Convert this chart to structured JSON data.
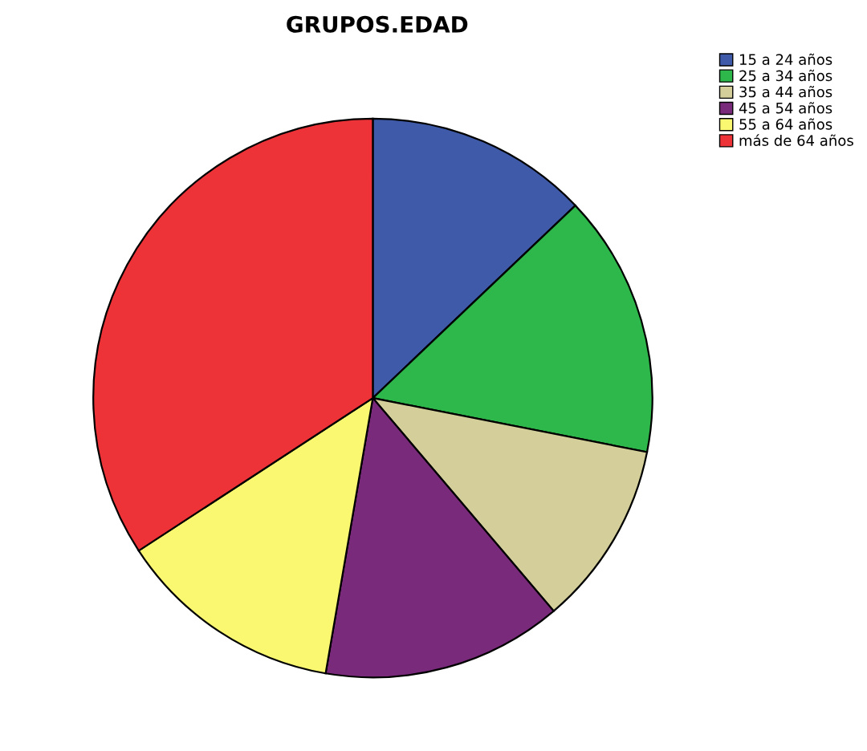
{
  "chart_data": {
    "type": "pie",
    "title": "GRUPOS.EDAD",
    "categories": [
      "15 a 24 años",
      "25 a 34 años",
      "35 a 44 años",
      "45 a 54 años",
      "55 a 64 años",
      "más de 64 años"
    ],
    "values": [
      12.9,
      15.2,
      10.7,
      13.9,
      13.1,
      34.2
    ],
    "colors": [
      "#3f5aa8",
      "#2eb84b",
      "#d4cf9a",
      "#7a2a7a",
      "#f9f870",
      "#ee3338"
    ],
    "legend": "top right"
  }
}
